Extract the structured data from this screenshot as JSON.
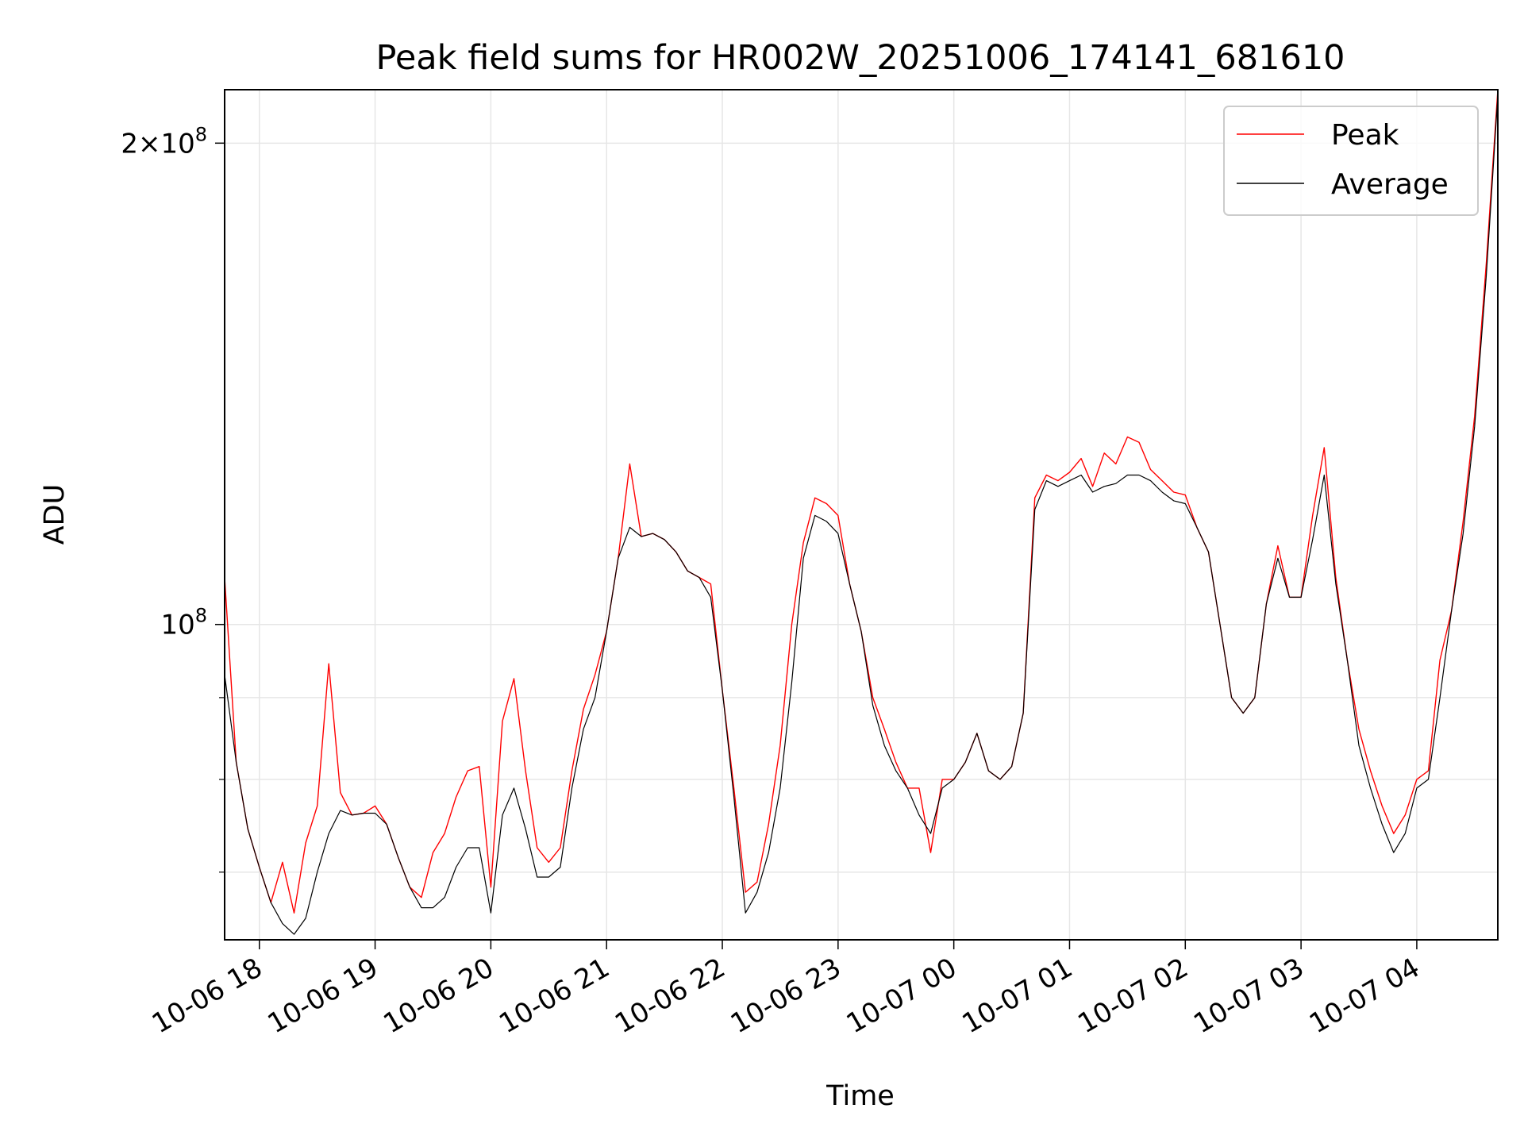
{
  "chart_data": {
    "type": "line",
    "title": "Peak field sums for HR002W_20251006_174141_681610",
    "xlabel": "Time",
    "ylabel": "ADU",
    "x_scale": "time",
    "y_scale": "log",
    "xlim": [
      "2025-10-06 17:42",
      "2025-10-07 04:42"
    ],
    "ylim": [
      63500000,
      216000000
    ],
    "x_tick_labels": [
      "10-06 18",
      "10-06 19",
      "10-06 20",
      "10-06 21",
      "10-06 22",
      "10-06 23",
      "10-07 00",
      "10-07 01",
      "10-07 02",
      "10-07 03",
      "10-07 04"
    ],
    "y_tick_labels": [
      "10^8",
      "2×10^8"
    ],
    "grid": true,
    "legend_position": "top-right",
    "series": [
      {
        "name": "Peak",
        "color": "#ff0000",
        "x": [
          "2025-10-06 17:42",
          "2025-10-06 17:48",
          "2025-10-06 17:54",
          "2025-10-06 18:00",
          "2025-10-06 18:06",
          "2025-10-06 18:12",
          "2025-10-06 18:18",
          "2025-10-06 18:24",
          "2025-10-06 18:30",
          "2025-10-06 18:36",
          "2025-10-06 18:42",
          "2025-10-06 18:48",
          "2025-10-06 18:54",
          "2025-10-06 19:00",
          "2025-10-06 19:06",
          "2025-10-06 19:12",
          "2025-10-06 19:18",
          "2025-10-06 19:24",
          "2025-10-06 19:30",
          "2025-10-06 19:36",
          "2025-10-06 19:42",
          "2025-10-06 19:48",
          "2025-10-06 19:54",
          "2025-10-06 20:00",
          "2025-10-06 20:06",
          "2025-10-06 20:12",
          "2025-10-06 20:18",
          "2025-10-06 20:24",
          "2025-10-06 20:30",
          "2025-10-06 20:36",
          "2025-10-06 20:42",
          "2025-10-06 20:48",
          "2025-10-06 20:54",
          "2025-10-06 21:00",
          "2025-10-06 21:06",
          "2025-10-06 21:12",
          "2025-10-06 21:18",
          "2025-10-06 21:24",
          "2025-10-06 21:30",
          "2025-10-06 21:36",
          "2025-10-06 21:42",
          "2025-10-06 21:48",
          "2025-10-06 21:54",
          "2025-10-06 22:00",
          "2025-10-06 22:06",
          "2025-10-06 22:12",
          "2025-10-06 22:18",
          "2025-10-06 22:24",
          "2025-10-06 22:30",
          "2025-10-06 22:36",
          "2025-10-06 22:42",
          "2025-10-06 22:48",
          "2025-10-06 22:54",
          "2025-10-06 23:00",
          "2025-10-06 23:06",
          "2025-10-06 23:12",
          "2025-10-06 23:18",
          "2025-10-06 23:24",
          "2025-10-06 23:30",
          "2025-10-06 23:36",
          "2025-10-06 23:42",
          "2025-10-06 23:48",
          "2025-10-06 23:54",
          "2025-10-07 00:00",
          "2025-10-07 00:06",
          "2025-10-07 00:12",
          "2025-10-07 00:18",
          "2025-10-07 00:24",
          "2025-10-07 00:30",
          "2025-10-07 00:36",
          "2025-10-07 00:42",
          "2025-10-07 00:48",
          "2025-10-07 00:54",
          "2025-10-07 01:00",
          "2025-10-07 01:06",
          "2025-10-07 01:12",
          "2025-10-07 01:18",
          "2025-10-07 01:24",
          "2025-10-07 01:30",
          "2025-10-07 01:36",
          "2025-10-07 01:42",
          "2025-10-07 01:48",
          "2025-10-07 01:54",
          "2025-10-07 02:00",
          "2025-10-07 02:06",
          "2025-10-07 02:12",
          "2025-10-07 02:18",
          "2025-10-07 02:24",
          "2025-10-07 02:30",
          "2025-10-07 02:36",
          "2025-10-07 02:42",
          "2025-10-07 02:48",
          "2025-10-07 02:54",
          "2025-10-07 03:00",
          "2025-10-07 03:06",
          "2025-10-07 03:12",
          "2025-10-07 03:18",
          "2025-10-07 03:24",
          "2025-10-07 03:30",
          "2025-10-07 03:36",
          "2025-10-07 03:42",
          "2025-10-07 03:48",
          "2025-10-07 03:54",
          "2025-10-07 04:00",
          "2025-10-07 04:06",
          "2025-10-07 04:12",
          "2025-10-07 04:18",
          "2025-10-07 04:24",
          "2025-10-07 04:30",
          "2025-10-07 04:36",
          "2025-10-07 04:42"
        ],
        "values": [
          107000000,
          82000000,
          74500000,
          70500000,
          67000000,
          71000000,
          66000000,
          73000000,
          77000000,
          94500000,
          78500000,
          76000000,
          76200000,
          77000000,
          75000000,
          71500000,
          68500000,
          67500000,
          72000000,
          74000000,
          78000000,
          81000000,
          81500000,
          68500000,
          87000000,
          92500000,
          81000000,
          72500000,
          71000000,
          72500000,
          81000000,
          88500000,
          93000000,
          99000000,
          110000000,
          126000000,
          113500000,
          114000000,
          113000000,
          111000000,
          108000000,
          107000000,
          106000000,
          91000000,
          79000000,
          68000000,
          69000000,
          75000000,
          84000000,
          100000000,
          112500000,
          120000000,
          119000000,
          117000000,
          106000000,
          99000000,
          90000000,
          86000000,
          82000000,
          79000000,
          79000000,
          72000000,
          80000000,
          80000000,
          82000000,
          85500000,
          81000000,
          80000000,
          81500000,
          88000000,
          120000000,
          124000000,
          123000000,
          124500000,
          127000000,
          122000000,
          128000000,
          126000000,
          131000000,
          130000000,
          125000000,
          123000000,
          121000000,
          120500000,
          115000000,
          111000000,
          100000000,
          90000000,
          88000000,
          90000000,
          103000000,
          112000000,
          104000000,
          104000000,
          117000000,
          129000000,
          107000000,
          95000000,
          86000000,
          81000000,
          77000000,
          74000000,
          76000000,
          80000000,
          81000000,
          95000000,
          102000000,
          116000000,
          135000000,
          168000000,
          216000000
        ]
      },
      {
        "name": "Average",
        "color": "#000000",
        "x": [
          "2025-10-06 17:42",
          "2025-10-06 17:48",
          "2025-10-06 17:54",
          "2025-10-06 18:00",
          "2025-10-06 18:06",
          "2025-10-06 18:12",
          "2025-10-06 18:18",
          "2025-10-06 18:24",
          "2025-10-06 18:30",
          "2025-10-06 18:36",
          "2025-10-06 18:42",
          "2025-10-06 18:48",
          "2025-10-06 18:54",
          "2025-10-06 19:00",
          "2025-10-06 19:06",
          "2025-10-06 19:12",
          "2025-10-06 19:18",
          "2025-10-06 19:24",
          "2025-10-06 19:30",
          "2025-10-06 19:36",
          "2025-10-06 19:42",
          "2025-10-06 19:48",
          "2025-10-06 19:54",
          "2025-10-06 20:00",
          "2025-10-06 20:06",
          "2025-10-06 20:12",
          "2025-10-06 20:18",
          "2025-10-06 20:24",
          "2025-10-06 20:30",
          "2025-10-06 20:36",
          "2025-10-06 20:42",
          "2025-10-06 20:48",
          "2025-10-06 20:54",
          "2025-10-06 21:00",
          "2025-10-06 21:06",
          "2025-10-06 21:12",
          "2025-10-06 21:18",
          "2025-10-06 21:24",
          "2025-10-06 21:30",
          "2025-10-06 21:36",
          "2025-10-06 21:42",
          "2025-10-06 21:48",
          "2025-10-06 21:54",
          "2025-10-06 22:00",
          "2025-10-06 22:06",
          "2025-10-06 22:12",
          "2025-10-06 22:18",
          "2025-10-06 22:24",
          "2025-10-06 22:30",
          "2025-10-06 22:36",
          "2025-10-06 22:42",
          "2025-10-06 22:48",
          "2025-10-06 22:54",
          "2025-10-06 23:00",
          "2025-10-06 23:06",
          "2025-10-06 23:12",
          "2025-10-06 23:18",
          "2025-10-06 23:24",
          "2025-10-06 23:30",
          "2025-10-06 23:36",
          "2025-10-06 23:42",
          "2025-10-06 23:48",
          "2025-10-06 23:54",
          "2025-10-07 00:00",
          "2025-10-07 00:06",
          "2025-10-07 00:12",
          "2025-10-07 00:18",
          "2025-10-07 00:24",
          "2025-10-07 00:30",
          "2025-10-07 00:36",
          "2025-10-07 00:42",
          "2025-10-07 00:48",
          "2025-10-07 00:54",
          "2025-10-07 01:00",
          "2025-10-07 01:06",
          "2025-10-07 01:12",
          "2025-10-07 01:18",
          "2025-10-07 01:24",
          "2025-10-07 01:30",
          "2025-10-07 01:36",
          "2025-10-07 01:42",
          "2025-10-07 01:48",
          "2025-10-07 01:54",
          "2025-10-07 02:00",
          "2025-10-07 02:06",
          "2025-10-07 02:12",
          "2025-10-07 02:18",
          "2025-10-07 02:24",
          "2025-10-07 02:30",
          "2025-10-07 02:36",
          "2025-10-07 02:42",
          "2025-10-07 02:48",
          "2025-10-07 02:54",
          "2025-10-07 03:00",
          "2025-10-07 03:06",
          "2025-10-07 03:12",
          "2025-10-07 03:18",
          "2025-10-07 03:24",
          "2025-10-07 03:30",
          "2025-10-07 03:36",
          "2025-10-07 03:42",
          "2025-10-07 03:48",
          "2025-10-07 03:54",
          "2025-10-07 04:00",
          "2025-10-07 04:06",
          "2025-10-07 04:12",
          "2025-10-07 04:18",
          "2025-10-07 04:24",
          "2025-10-07 04:30",
          "2025-10-07 04:36",
          "2025-10-07 04:42"
        ],
        "values": [
          93000000,
          82000000,
          74500000,
          70500000,
          67000000,
          65000000,
          64000000,
          65500000,
          70000000,
          74000000,
          76500000,
          76000000,
          76200000,
          76200000,
          75000000,
          71500000,
          68500000,
          66500000,
          66500000,
          67500000,
          70500000,
          72500000,
          72500000,
          66000000,
          76000000,
          79000000,
          74500000,
          69500000,
          69500000,
          70500000,
          79000000,
          86000000,
          90000000,
          99000000,
          110000000,
          115000000,
          113500000,
          114000000,
          113000000,
          111000000,
          108000000,
          107000000,
          104000000,
          91000000,
          78000000,
          66000000,
          68000000,
          72000000,
          79000000,
          92000000,
          110000000,
          117000000,
          116000000,
          114000000,
          106000000,
          99000000,
          89000000,
          84000000,
          81000000,
          79000000,
          76000000,
          74000000,
          79000000,
          80000000,
          82000000,
          85500000,
          81000000,
          80000000,
          81500000,
          88000000,
          118000000,
          123000000,
          122000000,
          123000000,
          124000000,
          121000000,
          122000000,
          122500000,
          124000000,
          124000000,
          123000000,
          121000000,
          119500000,
          119000000,
          115000000,
          111000000,
          100000000,
          90000000,
          88000000,
          90000000,
          103000000,
          110000000,
          104000000,
          104000000,
          113000000,
          124000000,
          106000000,
          95000000,
          84000000,
          79000000,
          75000000,
          72000000,
          74000000,
          79000000,
          80000000,
          90000000,
          102000000,
          114000000,
          133000000,
          165000000,
          214000000
        ]
      }
    ]
  }
}
